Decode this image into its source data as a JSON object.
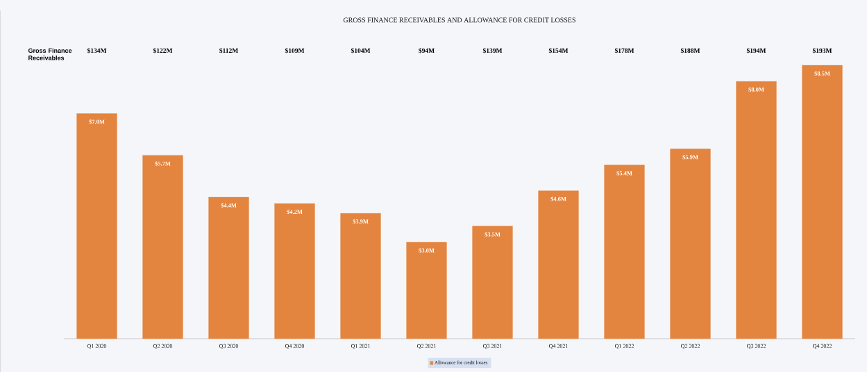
{
  "chart_data": {
    "type": "bar",
    "title": "GROSS FINANCE RECEIVABLES AND ALLOWANCE FOR CREDIT LOSSES",
    "categories": [
      "Q1 2020",
      "Q2 2020",
      "Q3 2020",
      "Q4 2020",
      "Q1 2021",
      "Q2 2021",
      "Q3 2021",
      "Q4 2021",
      "Q1 2022",
      "Q2 2022",
      "Q3 2022",
      "Q4 2022"
    ],
    "series": [
      {
        "name": "Allowance for credit losses",
        "color": "#e3843f",
        "values": [
          7.0,
          5.7,
          4.4,
          4.2,
          3.9,
          3.0,
          3.5,
          4.6,
          5.4,
          5.9,
          8.0,
          8.5
        ],
        "value_labels": [
          "$7.0M",
          "$5.7M",
          "$4.4M",
          "$4.2M",
          "$3.9M",
          "$3.0M",
          "$3.5M",
          "$4.6M",
          "$5.4M",
          "$5.9M",
          "$8.0M",
          "$8.5M"
        ]
      }
    ],
    "annotations": [
      "Gross Finance Receivables",
      "$134M",
      "$122M",
      "$112M",
      "$109M",
      "$104M",
      "$94M",
      "$139M",
      "$154M",
      "$178M",
      "$188M",
      "$194M",
      "$193M"
    ],
    "legend": "bottom",
    "grid": false
  }
}
